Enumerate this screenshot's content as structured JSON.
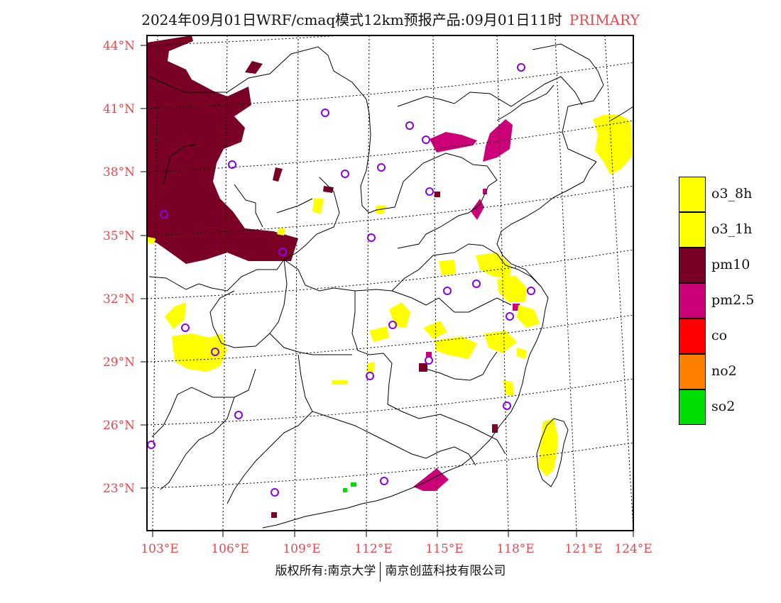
{
  "title": "2024年09月01日WRF/cmaq模式12km预报产品:09月01日11时",
  "title_tag": "PRIMARY",
  "latitude_labels": [
    "44°N",
    "41°N",
    "38°N",
    "35°N",
    "32°N",
    "29°N",
    "26°N",
    "23°N"
  ],
  "longitude_labels": [
    "103°E",
    "106°E",
    "109°E",
    "112°E",
    "115°E",
    "118°E",
    "121°E",
    "124°E"
  ],
  "legend": [
    {
      "label": "o3_8h",
      "color": "#ffff00"
    },
    {
      "label": "o3_1h",
      "color": "#ffff00"
    },
    {
      "label": "pm10",
      "color": "#7a0026"
    },
    {
      "label": "pm2.5",
      "color": "#cc0077"
    },
    {
      "label": "co",
      "color": "#ff0000"
    },
    {
      "label": "no2",
      "color": "#ff7f00"
    },
    {
      "label": "so2",
      "color": "#00dd00"
    }
  ],
  "footer_left": "版权所有:南京大学",
  "footer_right": "南京创蓝科技有限公司",
  "colors": {
    "station_marker": "#8800ee",
    "label_red": "#e8474d"
  }
}
